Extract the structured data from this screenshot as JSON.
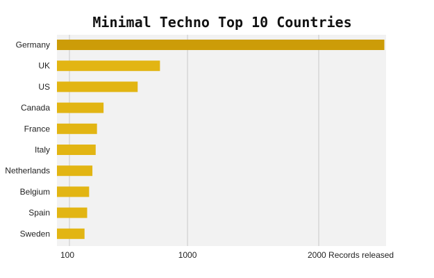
{
  "chart_data": {
    "type": "bar",
    "orientation": "horizontal",
    "title": "Minimal Techno Top 10 Countries",
    "xlabel": "Records released",
    "categories": [
      "Germany",
      "UK",
      "US",
      "Canada",
      "France",
      "Italy",
      "Netherlands",
      "Belgium",
      "Spain",
      "Sweden"
    ],
    "values": [
      2500,
      790,
      620,
      360,
      310,
      300,
      275,
      250,
      235,
      215
    ],
    "xlim": [
      100,
      2600
    ],
    "xticks": [
      100,
      1000,
      2000
    ],
    "tick_labels": [
      "100",
      "1000",
      "2000"
    ],
    "grid": true,
    "colors": {
      "bar": "#e2b513",
      "bar_highlight": "#cc9c08",
      "plot_background": "#f2f2f2",
      "grid": "#c8c8c8"
    }
  }
}
